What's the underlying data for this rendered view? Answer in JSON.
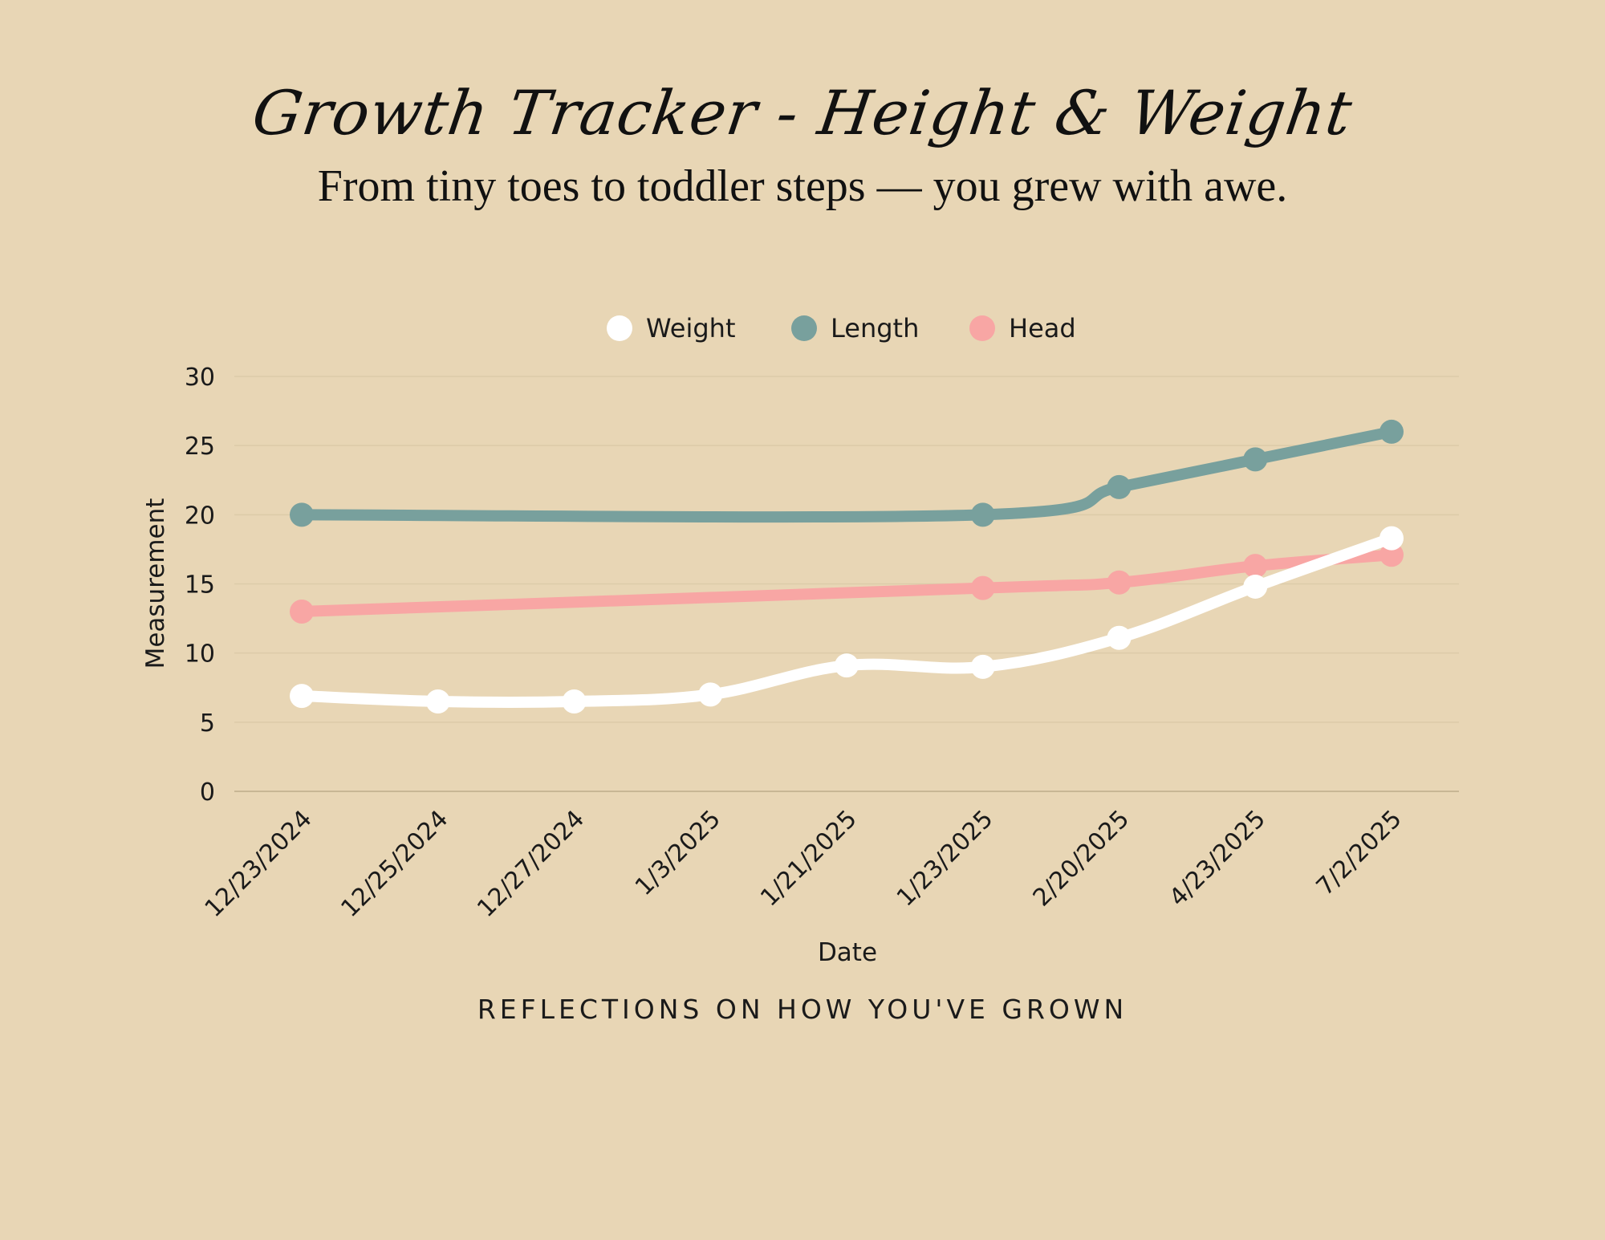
{
  "header": {
    "title": "Growth Tracker - Height & Weight",
    "subtitle": "From tiny toes to toddler steps — you grew with awe."
  },
  "footer": {
    "text": "REFLECTIONS ON HOW YOU'VE GROWN"
  },
  "colors": {
    "background": "#e8d6b5",
    "weight": "#ffffff",
    "length": "#78a09d",
    "head": "#f8a6a4",
    "grid": "#dccba9",
    "axis": "#c8b795"
  },
  "chart_data": {
    "type": "line",
    "xlabel": "Date",
    "ylabel": "Measurement",
    "ylim": [
      0,
      30
    ],
    "yticks": [
      0,
      5,
      10,
      15,
      20,
      25,
      30
    ],
    "grid": true,
    "legend_position": "top-center",
    "categories": [
      "12/23/2024",
      "12/25/2024",
      "12/27/2024",
      "1/3/2025",
      "1/21/2025",
      "1/23/2025",
      "2/20/2025",
      "4/23/2025",
      "7/2/2025"
    ],
    "series": [
      {
        "name": "Weight",
        "color": "#ffffff",
        "values": [
          6.9,
          6.5,
          6.5,
          7.0,
          9.1,
          9.0,
          11.1,
          14.8,
          18.3
        ]
      },
      {
        "name": "Length",
        "color": "#78a09d",
        "values": [
          20.0,
          null,
          null,
          null,
          null,
          20.0,
          22.0,
          24.0,
          26.0
        ]
      },
      {
        "name": "Head",
        "color": "#f8a6a4",
        "values": [
          13.0,
          null,
          null,
          null,
          null,
          14.7,
          15.1,
          16.3,
          17.1
        ]
      }
    ]
  }
}
